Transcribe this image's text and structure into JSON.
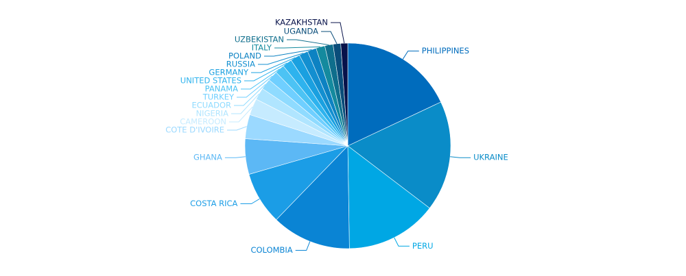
{
  "chart_data": {
    "type": "pie",
    "categories": [
      "PHILIPPINES",
      "UKRAINE",
      "PERU",
      "COLOMBIA",
      "COSTA RICA",
      "GHANA",
      "COTE D'IVOIRE",
      "CAMEROON",
      "NIGERIA",
      "ECUADOR",
      "TURKEY",
      "PANAMA",
      "UNITED STATES",
      "GERMANY",
      "RUSSIA",
      "POLAND",
      "ITALY",
      "UZBEKISTAN",
      "UGANDA",
      "KAZAKHSTAN"
    ],
    "values": [
      18,
      17.4,
      14.4,
      12.5,
      8.3,
      5.6,
      3.8,
      2.6,
      1.9,
      1.7,
      1.6,
      1.5,
      1.5,
      1.5,
      1.4,
      1.4,
      1.4,
      1.3,
      1.2,
      1.1
    ],
    "colors": [
      "#006cbd",
      "#0a8cc8",
      "#00a7e4",
      "#0a84d4",
      "#1b9de6",
      "#5cb8f5",
      "#9bd9ff",
      "#c6ebff",
      "#b0e5ff",
      "#8fdbff",
      "#6fcfff",
      "#4cc3f4",
      "#2eb3ee",
      "#1aa0e0",
      "#138fd0",
      "#0d82c2",
      "#148a9e",
      "#0f6e8c",
      "#0a4d7a",
      "#07124a"
    ]
  }
}
